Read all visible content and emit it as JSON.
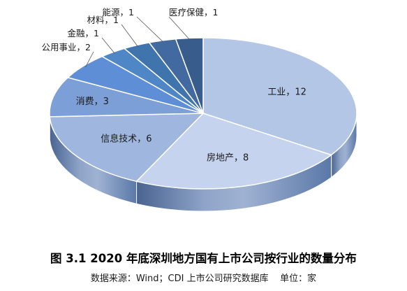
{
  "chart_data": {
    "type": "pie",
    "style": "3d",
    "title": "图 3.1 2020 年底深圳地方国有上市公司按行业的数量分布",
    "source_text": "数据来源：Wind；CDI 上市公司研究数据库    单位：家",
    "series": [
      {
        "slices": [
          {
            "label": "工业，12",
            "category": "工业",
            "value": 12,
            "color": "#b3c6e6"
          },
          {
            "label": "房地产，8",
            "category": "房地产",
            "value": 8,
            "color": "#c6d3ee"
          },
          {
            "label": "信息技术，6",
            "category": "信息技术",
            "value": 6,
            "color": "#9fb6df"
          },
          {
            "label": "消费，3",
            "category": "消费",
            "value": 3,
            "color": "#7d9fd8"
          },
          {
            "label": "公用事业，2",
            "category": "公用事业",
            "value": 2,
            "color": "#5e8fd6"
          },
          {
            "label": "金融，1",
            "category": "金融",
            "value": 1,
            "color": "#4f86c6"
          },
          {
            "label": "材料，1",
            "category": "材料",
            "value": 1,
            "color": "#3f74ad"
          },
          {
            "label": "能源，1",
            "category": "能源",
            "value": 1,
            "color": "#436aa0"
          },
          {
            "label": "医疗保健，1",
            "category": "医疗保健",
            "value": 1,
            "color": "#385d8c"
          }
        ]
      }
    ],
    "legend": "none"
  }
}
